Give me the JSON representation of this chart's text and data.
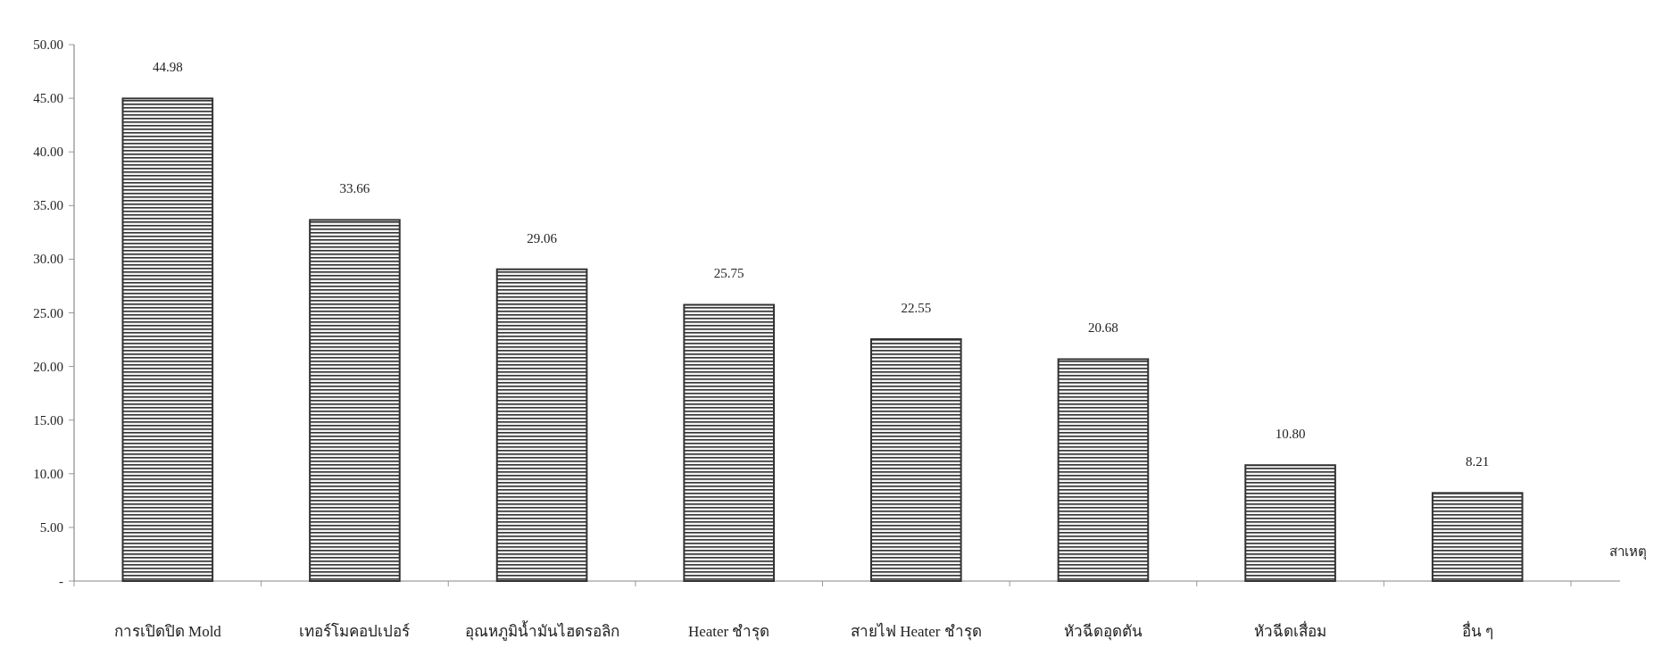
{
  "chart_data": {
    "type": "bar",
    "categories": [
      "การเปิดปิด Mold",
      "เทอร์โมคอปเปอร์",
      "อุณหภูมิน้ำมันไฮดรอลิก",
      "Heater ชำรุด",
      "สายไฟ Heater ชำรุด",
      "หัวฉีดอุดตัน",
      "หัวฉีดเสื่อม",
      "อื่น ๆ"
    ],
    "values": [
      44.98,
      33.66,
      29.06,
      25.75,
      22.55,
      20.68,
      10.8,
      8.21
    ],
    "value_labels": [
      "44.98",
      "33.66",
      "29.06",
      "25.75",
      "22.55",
      "20.68",
      "10.80",
      "8.21"
    ],
    "color": "#333333",
    "xlabel": "สาเหตุ",
    "ylim": [
      0,
      50
    ],
    "yticks": [
      {
        "value": 0,
        "label": "-"
      },
      {
        "value": 5,
        "label": "5.00"
      },
      {
        "value": 10,
        "label": "10.00"
      },
      {
        "value": 15,
        "label": "15.00"
      },
      {
        "value": 20,
        "label": "20.00"
      },
      {
        "value": 25,
        "label": "25.00"
      },
      {
        "value": 30,
        "label": "30.00"
      },
      {
        "value": 35,
        "label": "35.00"
      },
      {
        "value": 40,
        "label": "40.00"
      },
      {
        "value": 45,
        "label": "45.00"
      },
      {
        "value": 50,
        "label": "50.00"
      }
    ],
    "grid": false
  }
}
